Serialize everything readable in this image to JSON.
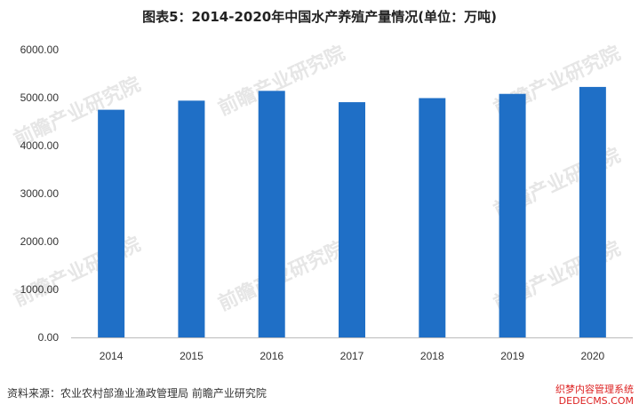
{
  "title": "图表5：2014-2020年中国水产养殖产量情况(单位：万吨)",
  "source": "资料来源：农业农村部渔业渔政管理局 前瞻产业研究院",
  "watermark": "前瞻产业研究院",
  "corner_watermark": {
    "line1": "织梦内容管理系统",
    "line2": "DEDECMS.COM"
  },
  "colors": {
    "bar": "#1f6fc6",
    "axis": "#bbbbbb"
  },
  "chart_data": {
    "type": "bar",
    "title": "图表5：2014-2020年中国水产养殖产量情况(单位：万吨)",
    "xlabel": "",
    "ylabel": "",
    "categories": [
      "2014",
      "2015",
      "2016",
      "2017",
      "2018",
      "2019",
      "2020"
    ],
    "values": [
      4748,
      4938,
      5142,
      4906,
      4991,
      5079,
      5224
    ],
    "ylim": [
      0,
      6000
    ],
    "yticks": [
      "0.00",
      "1000.00",
      "2000.00",
      "3000.00",
      "4000.00",
      "5000.00",
      "6000.00"
    ],
    "grid": false,
    "legend": "none"
  }
}
